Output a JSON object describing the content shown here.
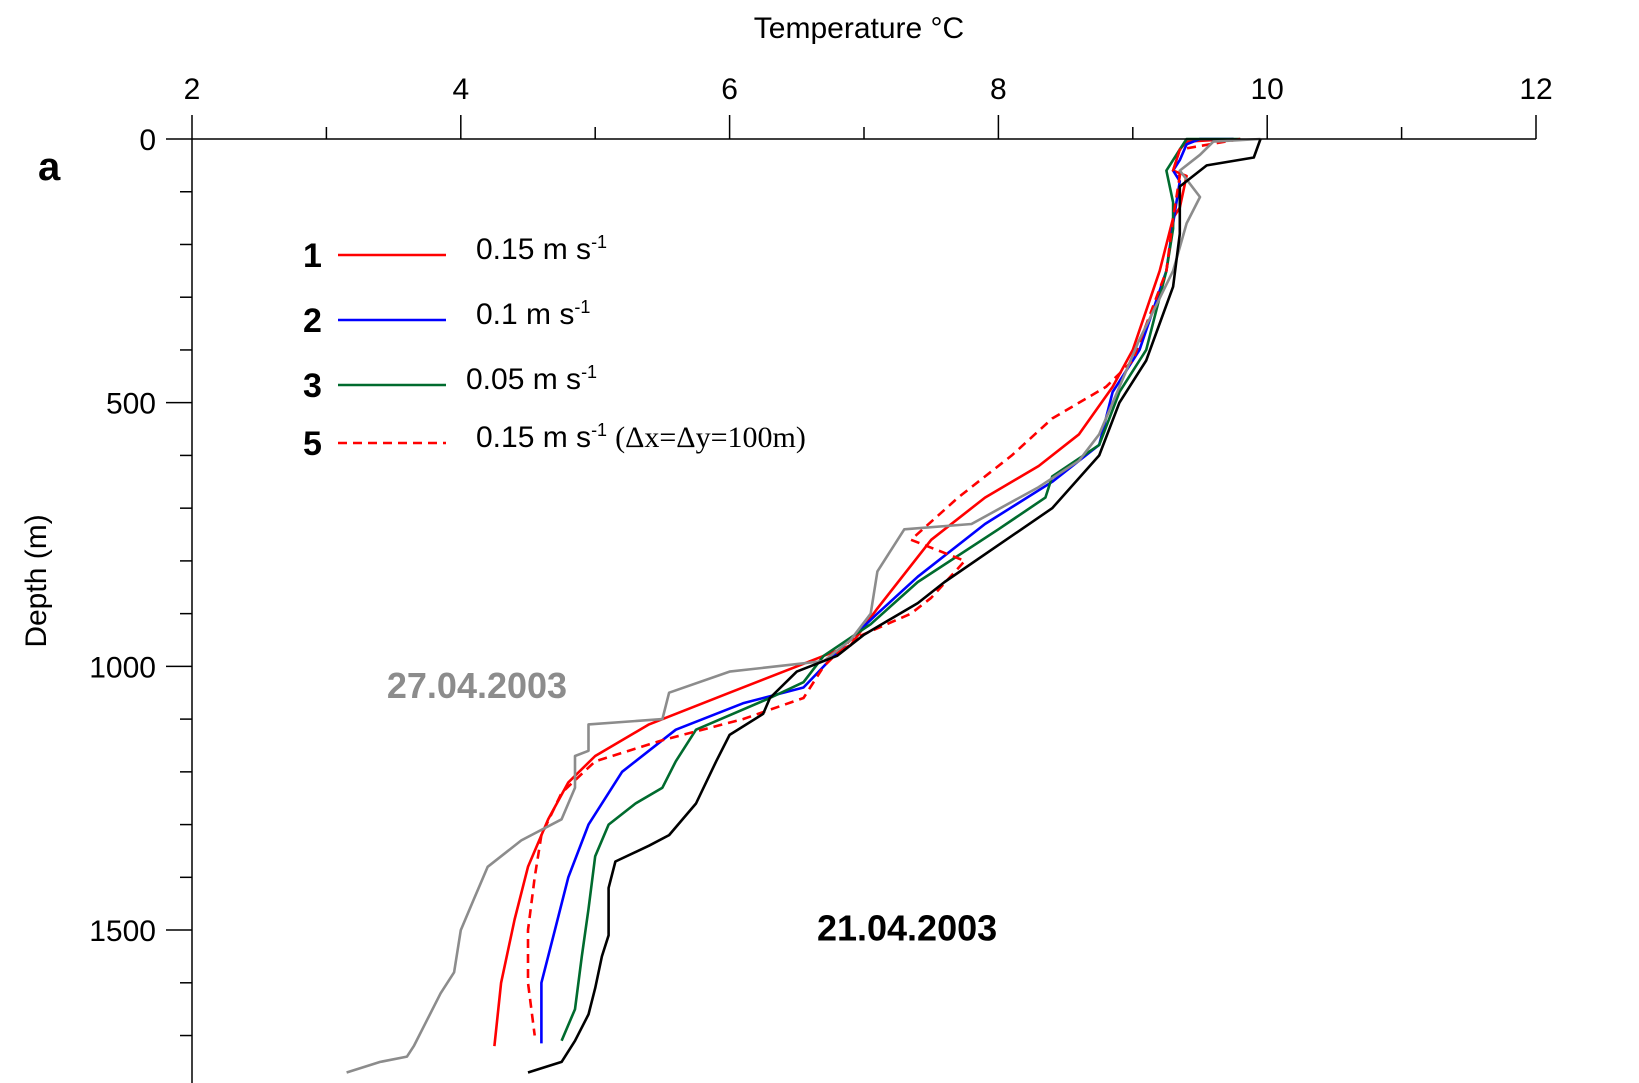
{
  "chart_data": {
    "type": "line",
    "panel_label": "a",
    "xlabel": "Temperature",
    "xlabel_unit": "°C",
    "ylabel": "Depth (m)",
    "xlim": [
      2,
      12
    ],
    "ylim": [
      0,
      1790
    ],
    "x_axis_position": "top",
    "y_inverted": true,
    "grid": false,
    "x_ticks": [
      "2",
      "4",
      "6",
      "8",
      "10",
      "12"
    ],
    "y_ticks": [
      "0",
      "500",
      "1000",
      "1500"
    ],
    "legend_placement": "upper-left",
    "legend": [
      {
        "num": "1",
        "label": "0.15 m s",
        "sup": "-1",
        "extra": "",
        "color": "#ff0000",
        "dashed": false
      },
      {
        "num": "2",
        "label": "0.1 m s",
        "sup": "-1",
        "extra": "",
        "color": "#0000ff",
        "dashed": false
      },
      {
        "num": "3",
        "label": "0.05 m s",
        "sup": "-1",
        "extra": "",
        "color": "#006b2e",
        "dashed": false
      },
      {
        "num": "5",
        "label": "0.15 m s",
        "sup": "-1",
        "extra": "(Δx=Δy=100m)",
        "color": "#ff0000",
        "dashed": true
      }
    ],
    "annotations": [
      {
        "text": "27.04.2003",
        "color": "#8c8c8c",
        "x": 3.45,
        "y": 1060
      },
      {
        "text": "21.04.2003",
        "color": "#000000",
        "x": 6.65,
        "y": 1520
      }
    ],
    "series": [
      {
        "name": "1",
        "color": "#ff0000",
        "dashed": false,
        "points": [
          [
            9.75,
            0
          ],
          [
            9.4,
            5
          ],
          [
            9.35,
            20
          ],
          [
            9.3,
            60
          ],
          [
            9.4,
            70
          ],
          [
            9.35,
            130
          ],
          [
            9.3,
            150
          ],
          [
            9.2,
            250
          ],
          [
            9.0,
            400
          ],
          [
            8.85,
            470
          ],
          [
            8.6,
            560
          ],
          [
            8.3,
            620
          ],
          [
            7.9,
            680
          ],
          [
            7.5,
            760
          ],
          [
            7.1,
            890
          ],
          [
            6.9,
            960
          ],
          [
            6.5,
            1000
          ],
          [
            6.0,
            1050
          ],
          [
            5.4,
            1110
          ],
          [
            5.0,
            1170
          ],
          [
            4.8,
            1220
          ],
          [
            4.65,
            1290
          ],
          [
            4.5,
            1380
          ],
          [
            4.4,
            1480
          ],
          [
            4.3,
            1600
          ],
          [
            4.25,
            1720
          ]
        ]
      },
      {
        "name": "2",
        "color": "#0000ff",
        "dashed": false,
        "points": [
          [
            9.75,
            0
          ],
          [
            9.5,
            0
          ],
          [
            9.4,
            10
          ],
          [
            9.35,
            40
          ],
          [
            9.3,
            60
          ],
          [
            9.35,
            80
          ],
          [
            9.3,
            160
          ],
          [
            9.25,
            250
          ],
          [
            9.05,
            400
          ],
          [
            8.85,
            480
          ],
          [
            8.75,
            580
          ],
          [
            8.4,
            650
          ],
          [
            7.9,
            730
          ],
          [
            7.4,
            830
          ],
          [
            7.1,
            900
          ],
          [
            6.85,
            960
          ],
          [
            6.7,
            1000
          ],
          [
            6.55,
            1040
          ],
          [
            6.1,
            1070
          ],
          [
            5.6,
            1120
          ],
          [
            5.2,
            1200
          ],
          [
            4.95,
            1300
          ],
          [
            4.8,
            1400
          ],
          [
            4.7,
            1500
          ],
          [
            4.6,
            1600
          ],
          [
            4.6,
            1715
          ]
        ]
      },
      {
        "name": "3",
        "color": "#006b2e",
        "dashed": false,
        "points": [
          [
            9.8,
            0
          ],
          [
            9.4,
            0
          ],
          [
            9.35,
            20
          ],
          [
            9.25,
            60
          ],
          [
            9.3,
            120
          ],
          [
            9.3,
            170
          ],
          [
            9.25,
            250
          ],
          [
            9.1,
            400
          ],
          [
            8.9,
            480
          ],
          [
            8.75,
            580
          ],
          [
            8.4,
            640
          ],
          [
            8.35,
            680
          ],
          [
            8.0,
            740
          ],
          [
            7.4,
            840
          ],
          [
            7.05,
            920
          ],
          [
            6.7,
            980
          ],
          [
            6.55,
            1030
          ],
          [
            6.3,
            1060
          ],
          [
            5.75,
            1120
          ],
          [
            5.6,
            1180
          ],
          [
            5.5,
            1230
          ],
          [
            5.3,
            1260
          ],
          [
            5.1,
            1300
          ],
          [
            5.0,
            1360
          ],
          [
            4.95,
            1460
          ],
          [
            4.9,
            1550
          ],
          [
            4.85,
            1650
          ],
          [
            4.75,
            1710
          ]
        ]
      },
      {
        "name": "5",
        "color": "#ff0000",
        "dashed": true,
        "points": [
          [
            9.8,
            0
          ],
          [
            9.35,
            20
          ],
          [
            9.3,
            60
          ],
          [
            9.35,
            70
          ],
          [
            9.3,
            150
          ],
          [
            9.25,
            250
          ],
          [
            9.0,
            420
          ],
          [
            8.8,
            470
          ],
          [
            8.4,
            530
          ],
          [
            8.1,
            600
          ],
          [
            7.7,
            680
          ],
          [
            7.35,
            760
          ],
          [
            7.75,
            800
          ],
          [
            7.5,
            870
          ],
          [
            7.35,
            900
          ],
          [
            6.9,
            950
          ],
          [
            6.7,
            1000
          ],
          [
            6.55,
            1060
          ],
          [
            6.1,
            1100
          ],
          [
            5.5,
            1140
          ],
          [
            5.0,
            1180
          ],
          [
            4.75,
            1240
          ],
          [
            4.6,
            1320
          ],
          [
            4.55,
            1400
          ],
          [
            4.5,
            1500
          ],
          [
            4.5,
            1600
          ],
          [
            4.55,
            1700
          ]
        ]
      },
      {
        "name": "27.04.2003",
        "color": "#8c8c8c",
        "dashed": false,
        "points": [
          [
            9.95,
            0
          ],
          [
            9.6,
            5
          ],
          [
            9.5,
            30
          ],
          [
            9.35,
            60
          ],
          [
            9.5,
            110
          ],
          [
            9.4,
            160
          ],
          [
            9.3,
            250
          ],
          [
            9.05,
            380
          ],
          [
            8.9,
            470
          ],
          [
            8.75,
            560
          ],
          [
            8.6,
            610
          ],
          [
            8.3,
            660
          ],
          [
            7.8,
            730
          ],
          [
            7.3,
            740
          ],
          [
            7.1,
            820
          ],
          [
            7.05,
            900
          ],
          [
            6.9,
            950
          ],
          [
            6.7,
            990
          ],
          [
            6.0,
            1010
          ],
          [
            5.55,
            1050
          ],
          [
            5.5,
            1100
          ],
          [
            4.95,
            1110
          ],
          [
            4.95,
            1160
          ],
          [
            4.85,
            1170
          ],
          [
            4.85,
            1230
          ],
          [
            4.75,
            1290
          ],
          [
            4.45,
            1330
          ],
          [
            4.2,
            1380
          ],
          [
            4.1,
            1440
          ],
          [
            4.0,
            1500
          ],
          [
            3.95,
            1580
          ],
          [
            3.85,
            1620
          ],
          [
            3.75,
            1670
          ],
          [
            3.65,
            1720
          ],
          [
            3.6,
            1740
          ],
          [
            3.4,
            1750
          ],
          [
            3.15,
            1770
          ]
        ]
      },
      {
        "name": "21.04.2003",
        "color": "#000000",
        "dashed": false,
        "points": [
          [
            9.95,
            0
          ],
          [
            9.9,
            35
          ],
          [
            9.55,
            50
          ],
          [
            9.35,
            90
          ],
          [
            9.35,
            180
          ],
          [
            9.3,
            280
          ],
          [
            9.1,
            420
          ],
          [
            8.9,
            500
          ],
          [
            8.75,
            600
          ],
          [
            8.4,
            700
          ],
          [
            8.0,
            770
          ],
          [
            7.6,
            840
          ],
          [
            7.4,
            880
          ],
          [
            7.0,
            940
          ],
          [
            6.8,
            980
          ],
          [
            6.5,
            1010
          ],
          [
            6.3,
            1060
          ],
          [
            6.25,
            1090
          ],
          [
            6.0,
            1130
          ],
          [
            5.9,
            1180
          ],
          [
            5.75,
            1260
          ],
          [
            5.55,
            1320
          ],
          [
            5.4,
            1340
          ],
          [
            5.15,
            1370
          ],
          [
            5.1,
            1420
          ],
          [
            5.1,
            1510
          ],
          [
            5.05,
            1550
          ],
          [
            5.0,
            1610
          ],
          [
            4.95,
            1660
          ],
          [
            4.85,
            1710
          ],
          [
            4.75,
            1750
          ],
          [
            4.5,
            1770
          ]
        ]
      }
    ]
  }
}
